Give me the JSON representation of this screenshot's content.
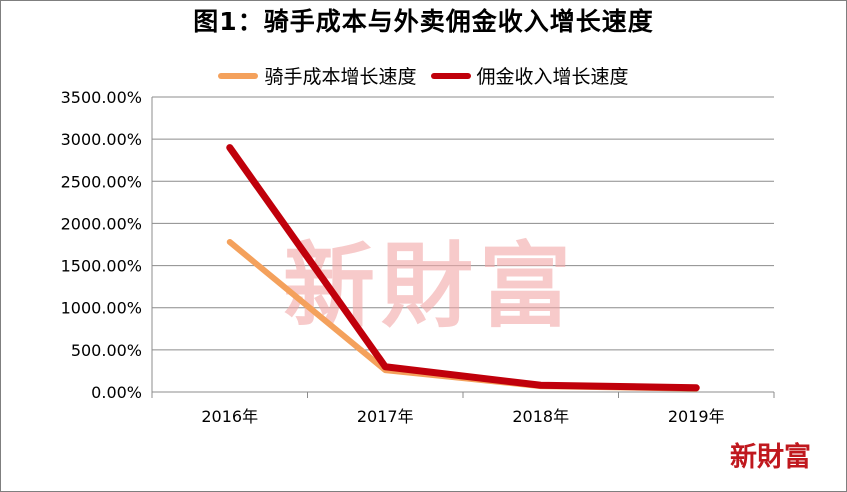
{
  "chart_data": {
    "type": "line",
    "title": "图1：骑手成本与外卖佣金收入增长速度",
    "categories": [
      "2016年",
      "2017年",
      "2018年",
      "2019年"
    ],
    "series": [
      {
        "name": "骑手成本增长速度",
        "color": "#f4a15c",
        "values": [
          1780,
          260,
          70,
          40
        ]
      },
      {
        "name": "佣金收入增长速度",
        "color": "#c0000b",
        "values": [
          2900,
          300,
          80,
          50
        ]
      }
    ],
    "ylim": [
      0,
      3500
    ],
    "yticks": [
      "0.00%",
      "500.00%",
      "1000.00%",
      "1500.00%",
      "2000.00%",
      "2500.00%",
      "3000.00%",
      "3500.00%"
    ],
    "grid": true,
    "legend_position": "top"
  },
  "watermark": {
    "center": "新財富",
    "corner": "新財富"
  }
}
